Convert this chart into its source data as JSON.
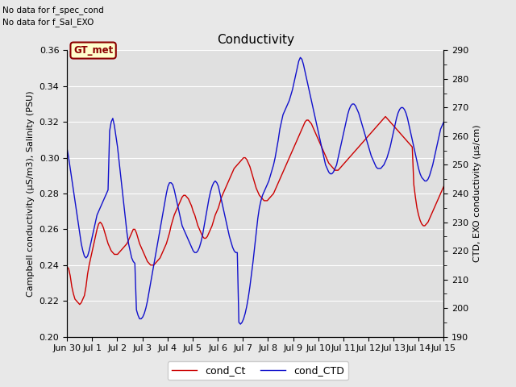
{
  "title": "Conductivity",
  "ylabel_left": "Campbell conductivity (μS/m3), Salinity (PSU)",
  "ylabel_right": "CTD, EXO conductivity (μs/cm)",
  "ylim_left": [
    0.2,
    0.36
  ],
  "ylim_right": [
    190,
    290
  ],
  "yticks_left": [
    0.2,
    0.22,
    0.24,
    0.26,
    0.28,
    0.3,
    0.32,
    0.34,
    0.36
  ],
  "yticks_right": [
    190,
    200,
    210,
    220,
    230,
    240,
    250,
    260,
    270,
    280,
    290
  ],
  "xtick_labels": [
    "Jun 30",
    "Jul 1",
    "Jul 2",
    "Jul 3",
    "Jul 4",
    "Jul 5",
    "Jul 6",
    "Jul 7",
    "Jul 8",
    "Jul 9",
    "Jul 10",
    "Jul 11",
    "Jul 12",
    "Jul 13",
    "Jul 14",
    "Jul 15"
  ],
  "annotation1": "No data for f_spec_cond",
  "annotation2": "No data for f_Sal_EXO",
  "box_label": "GT_met",
  "line1_label": "cond_Ct",
  "line2_label": "cond_CTD",
  "line1_color": "#cc0000",
  "line2_color": "#1010cc",
  "fig_facecolor": "#e8e8e8",
  "plot_bg_color": "#e0e0e0",
  "grid_color": "#ffffff",
  "cond_Ct": [
    0.239,
    0.238,
    0.234,
    0.228,
    0.224,
    0.221,
    0.22,
    0.219,
    0.218,
    0.219,
    0.221,
    0.223,
    0.228,
    0.235,
    0.24,
    0.244,
    0.248,
    0.252,
    0.256,
    0.26,
    0.263,
    0.264,
    0.263,
    0.261,
    0.258,
    0.255,
    0.252,
    0.25,
    0.248,
    0.247,
    0.246,
    0.246,
    0.246,
    0.247,
    0.248,
    0.249,
    0.25,
    0.251,
    0.252,
    0.254,
    0.256,
    0.258,
    0.26,
    0.26,
    0.258,
    0.255,
    0.252,
    0.25,
    0.248,
    0.246,
    0.244,
    0.242,
    0.241,
    0.24,
    0.24,
    0.24,
    0.241,
    0.242,
    0.243,
    0.244,
    0.246,
    0.248,
    0.25,
    0.252,
    0.255,
    0.258,
    0.262,
    0.265,
    0.268,
    0.27,
    0.272,
    0.274,
    0.276,
    0.278,
    0.279,
    0.279,
    0.278,
    0.277,
    0.275,
    0.273,
    0.27,
    0.268,
    0.265,
    0.262,
    0.26,
    0.258,
    0.256,
    0.255,
    0.255,
    0.256,
    0.258,
    0.26,
    0.262,
    0.265,
    0.268,
    0.27,
    0.272,
    0.275,
    0.278,
    0.28,
    0.282,
    0.284,
    0.286,
    0.288,
    0.29,
    0.292,
    0.294,
    0.295,
    0.296,
    0.297,
    0.298,
    0.299,
    0.3,
    0.3,
    0.299,
    0.297,
    0.295,
    0.292,
    0.289,
    0.286,
    0.283,
    0.281,
    0.279,
    0.278,
    0.277,
    0.276,
    0.276,
    0.276,
    0.277,
    0.278,
    0.279,
    0.28,
    0.282,
    0.284,
    0.286,
    0.288,
    0.29,
    0.292,
    0.294,
    0.296,
    0.298,
    0.3,
    0.302,
    0.304,
    0.306,
    0.308,
    0.31,
    0.312,
    0.314,
    0.316,
    0.318,
    0.32,
    0.321,
    0.321,
    0.32,
    0.319,
    0.317,
    0.315,
    0.313,
    0.311,
    0.309,
    0.307,
    0.305,
    0.303,
    0.301,
    0.299,
    0.297,
    0.296,
    0.295,
    0.294,
    0.293,
    0.293,
    0.293,
    0.294,
    0.295,
    0.296,
    0.297,
    0.298,
    0.299,
    0.3,
    0.301,
    0.302,
    0.303,
    0.304,
    0.305,
    0.306,
    0.307,
    0.308,
    0.309,
    0.31,
    0.311,
    0.312,
    0.313,
    0.314,
    0.315,
    0.316,
    0.317,
    0.318,
    0.319,
    0.32,
    0.321,
    0.322,
    0.323,
    0.322,
    0.321,
    0.32,
    0.319,
    0.318,
    0.317,
    0.316,
    0.315,
    0.314,
    0.313,
    0.312,
    0.311,
    0.31,
    0.309,
    0.308,
    0.307,
    0.306,
    0.285,
    0.278,
    0.272,
    0.268,
    0.265,
    0.263,
    0.262,
    0.262,
    0.263,
    0.264,
    0.266,
    0.268,
    0.27,
    0.272,
    0.274,
    0.276,
    0.278,
    0.28,
    0.282,
    0.284
  ],
  "cond_CTD": [
    0.305,
    0.3,
    0.294,
    0.288,
    0.282,
    0.276,
    0.27,
    0.264,
    0.258,
    0.252,
    0.248,
    0.245,
    0.244,
    0.245,
    0.248,
    0.252,
    0.256,
    0.26,
    0.264,
    0.268,
    0.27,
    0.272,
    0.274,
    0.276,
    0.278,
    0.28,
    0.282,
    0.315,
    0.32,
    0.322,
    0.318,
    0.312,
    0.306,
    0.298,
    0.29,
    0.282,
    0.274,
    0.266,
    0.258,
    0.252,
    0.248,
    0.244,
    0.242,
    0.241,
    0.215,
    0.212,
    0.21,
    0.21,
    0.211,
    0.213,
    0.216,
    0.22,
    0.225,
    0.23,
    0.235,
    0.24,
    0.245,
    0.25,
    0.255,
    0.26,
    0.265,
    0.27,
    0.275,
    0.28,
    0.284,
    0.286,
    0.286,
    0.285,
    0.282,
    0.278,
    0.274,
    0.27,
    0.266,
    0.262,
    0.26,
    0.258,
    0.256,
    0.254,
    0.252,
    0.25,
    0.248,
    0.247,
    0.247,
    0.248,
    0.25,
    0.253,
    0.257,
    0.262,
    0.267,
    0.272,
    0.277,
    0.281,
    0.284,
    0.286,
    0.287,
    0.286,
    0.284,
    0.28,
    0.276,
    0.272,
    0.268,
    0.264,
    0.26,
    0.256,
    0.253,
    0.25,
    0.248,
    0.247,
    0.247,
    0.208,
    0.207,
    0.208,
    0.21,
    0.213,
    0.217,
    0.222,
    0.228,
    0.235,
    0.242,
    0.25,
    0.258,
    0.266,
    0.272,
    0.276,
    0.279,
    0.281,
    0.283,
    0.285,
    0.287,
    0.29,
    0.293,
    0.296,
    0.3,
    0.305,
    0.31,
    0.316,
    0.32,
    0.324,
    0.326,
    0.328,
    0.33,
    0.332,
    0.335,
    0.338,
    0.342,
    0.346,
    0.35,
    0.354,
    0.356,
    0.355,
    0.352,
    0.348,
    0.344,
    0.34,
    0.336,
    0.332,
    0.328,
    0.324,
    0.32,
    0.316,
    0.312,
    0.308,
    0.304,
    0.3,
    0.296,
    0.294,
    0.292,
    0.291,
    0.291,
    0.292,
    0.294,
    0.296,
    0.3,
    0.304,
    0.308,
    0.312,
    0.316,
    0.32,
    0.324,
    0.327,
    0.329,
    0.33,
    0.33,
    0.329,
    0.327,
    0.325,
    0.322,
    0.319,
    0.316,
    0.313,
    0.31,
    0.307,
    0.304,
    0.301,
    0.299,
    0.297,
    0.295,
    0.294,
    0.294,
    0.294,
    0.295,
    0.296,
    0.298,
    0.3,
    0.303,
    0.306,
    0.31,
    0.314,
    0.318,
    0.322,
    0.325,
    0.327,
    0.328,
    0.328,
    0.327,
    0.325,
    0.322,
    0.318,
    0.314,
    0.31,
    0.306,
    0.302,
    0.298,
    0.294,
    0.291,
    0.289,
    0.288,
    0.287,
    0.287,
    0.288,
    0.29,
    0.293,
    0.296,
    0.3,
    0.304,
    0.308,
    0.312,
    0.316,
    0.318,
    0.32
  ]
}
